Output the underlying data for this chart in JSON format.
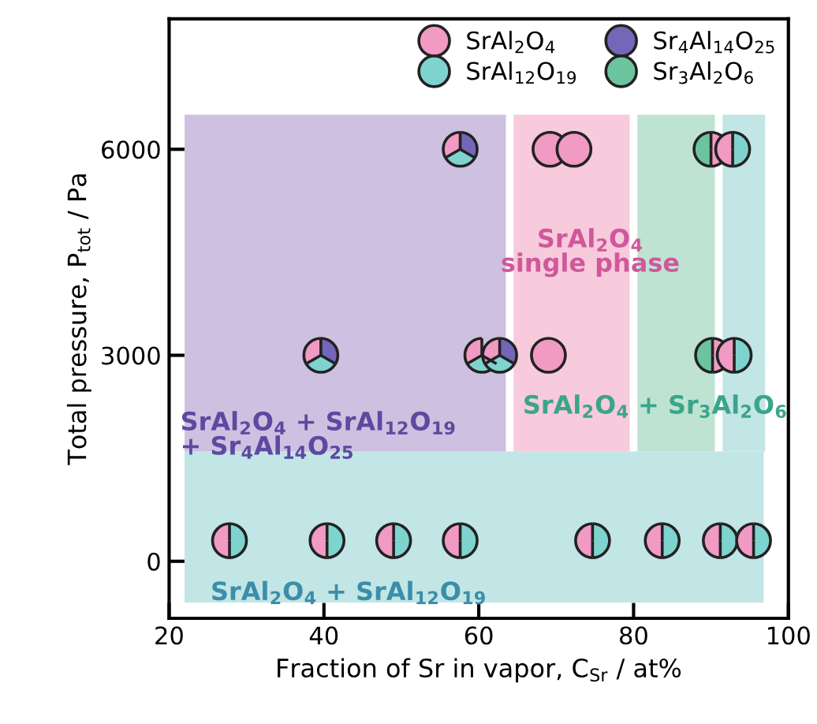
{
  "chart_data": {
    "type": "scatter",
    "xlabel": "Fraction of Sr in vapor, C$_{Sr}$ / at%",
    "ylabel": "Total pressure, P$_{tot}$ / Pa",
    "xlim": [
      20,
      100
    ],
    "xticks": [
      20,
      40,
      60,
      80,
      100
    ],
    "ylim": [
      -830,
      7900
    ],
    "yticks": [
      0,
      3000,
      6000
    ],
    "legend": "top right",
    "grid": false,
    "marker": "circle",
    "series": [
      {
        "name": "Sr$_{3}$Al$_{2}$O$_{6}$",
        "color": "#6cc49e",
        "x": [
          90.2,
          90
        ],
        "values": [
          3000,
          6000
        ]
      },
      {
        "name": "SrAl$_{2}$O$_{4}$",
        "color": "#f09ac4",
        "x": [
          27.8,
          40.4,
          49,
          57.6,
          74.7,
          83.7,
          91.2,
          95.5,
          39.6,
          60.4,
          62.7,
          69,
          90.2,
          93,
          57.6,
          69.2,
          72.3,
          90,
          92.8
        ],
        "values": [
          300,
          300,
          300,
          300,
          300,
          300,
          300,
          300,
          3000,
          3000,
          3000,
          3000,
          3000,
          3000,
          6000,
          6000,
          6000,
          6000,
          6000
        ]
      },
      {
        "name": "SrAl$_{12}$O$_{19}$",
        "color": "#7fd3cf",
        "x": [
          27.8,
          40.4,
          49,
          57.6,
          74.7,
          83.7,
          91.2,
          95.5,
          39.6,
          60.4,
          62.7,
          93,
          57.6,
          92.8
        ],
        "values": [
          300,
          300,
          300,
          300,
          300,
          300,
          300,
          300,
          3000,
          3000,
          3000,
          3000,
          6000,
          6000
        ]
      },
      {
        "name": "Sr$_{4}$Al$_{14}$O$_{25}$",
        "color": "#7466b8",
        "x": [
          39.6,
          60.4,
          62.7,
          57.6
        ],
        "values": [
          3000,
          null,
          3000,
          6000
        ]
      }
    ],
    "bands": [
      {
        "axis": "y",
        "from": -600,
        "to": 1600,
        "color": "#c2e5e6"
      },
      {
        "axis": "x",
        "from": 22,
        "to": 63.5,
        "color": "#cec0e0"
      },
      {
        "axis": "x",
        "from": 64.5,
        "to": 79.5,
        "color": "#f7cadc"
      },
      {
        "axis": "x",
        "from": 80.5,
        "to": 90.5,
        "color": "#bfe3d3"
      },
      {
        "axis": "x",
        "from": 91.5,
        "to": 97,
        "color": "#c2e5e6"
      }
    ],
    "annotations": [
      "SrAl$_{2}$O$_{4}$\nsingle phase",
      "SrAl$_{2}$O$_{4}$ + SrAl$_{12}$O$_{19}$\n+ Sr$_{4}$Al$_{14}$O$_{25}$",
      "SrAl$_{2}$O$_{4}$ + Sr$_{3}$Al$_{2}$O$_{6}$",
      "SrAl$_{2}$O$_{4}$ + SrAl$_{12}$O$_{19}$"
    ]
  }
}
